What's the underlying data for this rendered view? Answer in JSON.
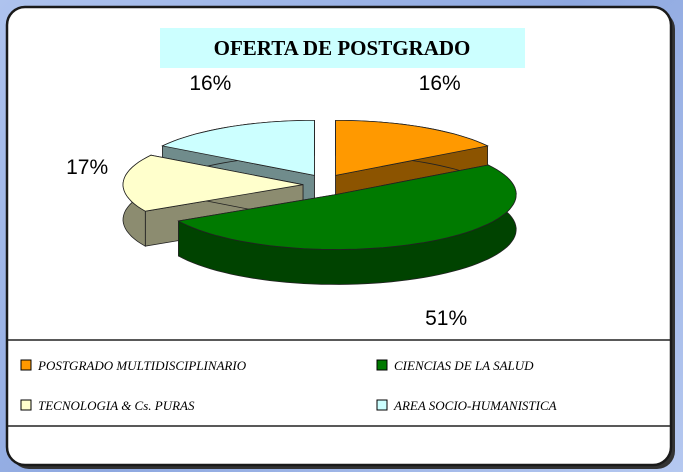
{
  "chart_data": {
    "type": "pie3d",
    "title": "OFERTA DE POSTGRADO",
    "categories": [
      "POSTGRADO MULTIDISCIPLINARIO",
      "CIENCIAS DE LA SALUD",
      "TECNOLOGIA & Cs. PURAS",
      "AREA SOCIO-HUMANISTICA"
    ],
    "values": [
      16,
      51,
      17,
      16
    ],
    "value_labels": [
      "16%",
      "51%",
      "17%",
      "16%"
    ],
    "colors": [
      "#ff9900",
      "#007a00",
      "#ffffcc",
      "#ccffff"
    ],
    "legend": "bottom"
  }
}
